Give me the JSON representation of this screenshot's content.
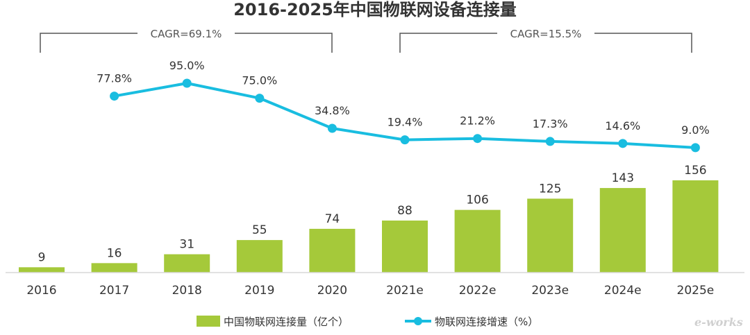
{
  "chart_data": {
    "type": "bar",
    "title": "2016-2025年中国物联网设备连接量",
    "categories": [
      "2016",
      "2017",
      "2018",
      "2019",
      "2020",
      "2021e",
      "2022e",
      "2023e",
      "2024e",
      "2025e"
    ],
    "series": [
      {
        "name": "中国物联网连接量（亿个）",
        "type": "bar",
        "color": "#a5c93a",
        "values": [
          9,
          16,
          31,
          55,
          74,
          88,
          106,
          125,
          143,
          156
        ]
      },
      {
        "name": "物联网连接增速（%）",
        "type": "line",
        "color": "#19bde0",
        "values": [
          null,
          77.8,
          95.0,
          75.0,
          34.8,
          19.4,
          21.2,
          17.3,
          14.6,
          9.0
        ],
        "labels": [
          null,
          "77.8%",
          "95.0%",
          "75.0%",
          "34.8%",
          "19.4%",
          "21.2%",
          "17.3%",
          "14.6%",
          "9.0%"
        ]
      }
    ],
    "annotations": [
      {
        "text": "CAGR=69.1%",
        "from": "2016",
        "to": "2020"
      },
      {
        "text": "CAGR=15.5%",
        "from": "2021e",
        "to": "2025e"
      }
    ],
    "legend": "bottom-center",
    "grid": false
  },
  "watermark": "e-works"
}
